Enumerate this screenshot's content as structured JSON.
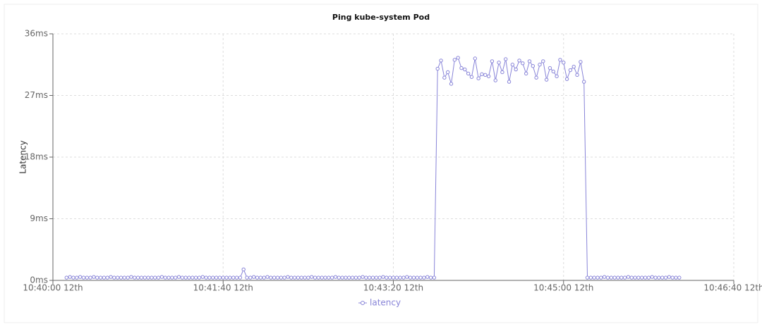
{
  "chart_data": {
    "type": "line",
    "title": "Ping kube-system Pod",
    "y_label": "Latency",
    "xlim": [
      "10:40:00",
      "10:46:40"
    ],
    "xticks": [
      {
        "value": "10:40:00",
        "label": "10:40:00 12th"
      },
      {
        "value": "10:41:40",
        "label": "10:41:40 12th"
      },
      {
        "value": "10:43:20",
        "label": "10:43:20 12th"
      },
      {
        "value": "10:45:00",
        "label": "10:45:00 12th"
      },
      {
        "value": "10:46:40",
        "label": "10:46:40 12th"
      }
    ],
    "ylim": [
      0,
      36
    ],
    "yticks": [
      {
        "value": 0,
        "label": "0ms"
      },
      {
        "value": 9,
        "label": "9ms"
      },
      {
        "value": 18,
        "label": "18ms"
      },
      {
        "value": 27,
        "label": "27ms"
      },
      {
        "value": 36,
        "label": "36ms"
      }
    ],
    "grid": true,
    "legend": "bottom",
    "x": [
      "10:40:08",
      "10:40:10",
      "10:40:12",
      "10:40:14",
      "10:40:16",
      "10:40:18",
      "10:40:20",
      "10:40:22",
      "10:40:24",
      "10:40:26",
      "10:40:28",
      "10:40:30",
      "10:40:32",
      "10:40:34",
      "10:40:36",
      "10:40:38",
      "10:40:40",
      "10:40:42",
      "10:40:44",
      "10:40:46",
      "10:40:48",
      "10:40:50",
      "10:40:52",
      "10:40:54",
      "10:40:56",
      "10:40:58",
      "10:41:00",
      "10:41:02",
      "10:41:04",
      "10:41:06",
      "10:41:08",
      "10:41:10",
      "10:41:12",
      "10:41:14",
      "10:41:16",
      "10:41:18",
      "10:41:20",
      "10:41:22",
      "10:41:24",
      "10:41:26",
      "10:41:28",
      "10:41:30",
      "10:41:32",
      "10:41:34",
      "10:41:36",
      "10:41:38",
      "10:41:40",
      "10:41:42",
      "10:41:44",
      "10:41:46",
      "10:41:48",
      "10:41:50",
      "10:41:52",
      "10:41:54",
      "10:41:56",
      "10:41:58",
      "10:42:00",
      "10:42:02",
      "10:42:04",
      "10:42:06",
      "10:42:08",
      "10:42:10",
      "10:42:12",
      "10:42:14",
      "10:42:16",
      "10:42:18",
      "10:42:20",
      "10:42:22",
      "10:42:24",
      "10:42:26",
      "10:42:28",
      "10:42:30",
      "10:42:32",
      "10:42:34",
      "10:42:36",
      "10:42:38",
      "10:42:40",
      "10:42:42",
      "10:42:44",
      "10:42:46",
      "10:42:48",
      "10:42:50",
      "10:42:52",
      "10:42:54",
      "10:42:56",
      "10:42:58",
      "10:43:00",
      "10:43:02",
      "10:43:04",
      "10:43:06",
      "10:43:08",
      "10:43:10",
      "10:43:12",
      "10:43:14",
      "10:43:16",
      "10:43:18",
      "10:43:20",
      "10:43:22",
      "10:43:24",
      "10:43:26",
      "10:43:28",
      "10:43:30",
      "10:43:32",
      "10:43:34",
      "10:43:36",
      "10:43:38",
      "10:43:40",
      "10:43:42",
      "10:43:44",
      "10:43:46",
      "10:43:48",
      "10:43:50",
      "10:43:52",
      "10:43:54",
      "10:43:56",
      "10:43:58",
      "10:44:00",
      "10:44:02",
      "10:44:04",
      "10:44:06",
      "10:44:08",
      "10:44:10",
      "10:44:12",
      "10:44:14",
      "10:44:16",
      "10:44:18",
      "10:44:20",
      "10:44:22",
      "10:44:24",
      "10:44:26",
      "10:44:28",
      "10:44:30",
      "10:44:32",
      "10:44:34",
      "10:44:36",
      "10:44:38",
      "10:44:40",
      "10:44:42",
      "10:44:44",
      "10:44:46",
      "10:44:48",
      "10:44:50",
      "10:44:52",
      "10:44:54",
      "10:44:56",
      "10:44:58",
      "10:45:00",
      "10:45:02",
      "10:45:04",
      "10:45:06",
      "10:45:08",
      "10:45:10",
      "10:45:12",
      "10:45:14",
      "10:45:16",
      "10:45:18",
      "10:45:20",
      "10:45:22",
      "10:45:24",
      "10:45:26",
      "10:45:28",
      "10:45:30",
      "10:45:32",
      "10:45:34",
      "10:45:36",
      "10:45:38",
      "10:45:40",
      "10:45:42",
      "10:45:44",
      "10:45:46",
      "10:45:48",
      "10:45:50",
      "10:45:52",
      "10:45:54",
      "10:45:56",
      "10:45:58",
      "10:46:00",
      "10:46:02",
      "10:46:04",
      "10:46:06",
      "10:46:08"
    ],
    "series": [
      {
        "name": "latency",
        "color": "#8884d8",
        "values": [
          0.4,
          0.5,
          0.4,
          0.4,
          0.5,
          0.4,
          0.4,
          0.4,
          0.5,
          0.4,
          0.4,
          0.4,
          0.4,
          0.5,
          0.4,
          0.4,
          0.4,
          0.4,
          0.4,
          0.5,
          0.4,
          0.4,
          0.4,
          0.4,
          0.4,
          0.4,
          0.4,
          0.4,
          0.5,
          0.4,
          0.4,
          0.4,
          0.4,
          0.5,
          0.4,
          0.4,
          0.4,
          0.4,
          0.4,
          0.4,
          0.5,
          0.4,
          0.4,
          0.4,
          0.4,
          0.4,
          0.4,
          0.4,
          0.4,
          0.4,
          0.4,
          0.4,
          1.6,
          0.4,
          0.4,
          0.5,
          0.4,
          0.4,
          0.4,
          0.5,
          0.4,
          0.4,
          0.4,
          0.4,
          0.4,
          0.5,
          0.4,
          0.4,
          0.4,
          0.4,
          0.4,
          0.4,
          0.5,
          0.4,
          0.4,
          0.4,
          0.4,
          0.4,
          0.4,
          0.5,
          0.4,
          0.4,
          0.4,
          0.4,
          0.4,
          0.4,
          0.4,
          0.5,
          0.4,
          0.4,
          0.4,
          0.4,
          0.4,
          0.5,
          0.4,
          0.4,
          0.4,
          0.4,
          0.4,
          0.4,
          0.5,
          0.4,
          0.4,
          0.4,
          0.4,
          0.4,
          0.5,
          0.4,
          0.4,
          30.9,
          32.1,
          29.6,
          30.4,
          28.7,
          32.2,
          32.5,
          31.0,
          30.8,
          30.2,
          29.7,
          32.4,
          29.5,
          30.1,
          30.0,
          29.8,
          32.0,
          29.2,
          31.8,
          30.4,
          32.3,
          29.0,
          31.5,
          30.8,
          32.1,
          31.7,
          30.2,
          32.0,
          31.3,
          29.6,
          31.5,
          32.0,
          29.3,
          31.0,
          30.5,
          29.8,
          32.2,
          31.8,
          29.4,
          30.7,
          31.2,
          30.0,
          31.9,
          29.0,
          0.4,
          0.4,
          0.4,
          0.4,
          0.4,
          0.5,
          0.4,
          0.4,
          0.4,
          0.4,
          0.4,
          0.4,
          0.5,
          0.4,
          0.4,
          0.4,
          0.4,
          0.4,
          0.4,
          0.5,
          0.4,
          0.4,
          0.4,
          0.4,
          0.5,
          0.4,
          0.4,
          0.4
        ]
      }
    ]
  }
}
